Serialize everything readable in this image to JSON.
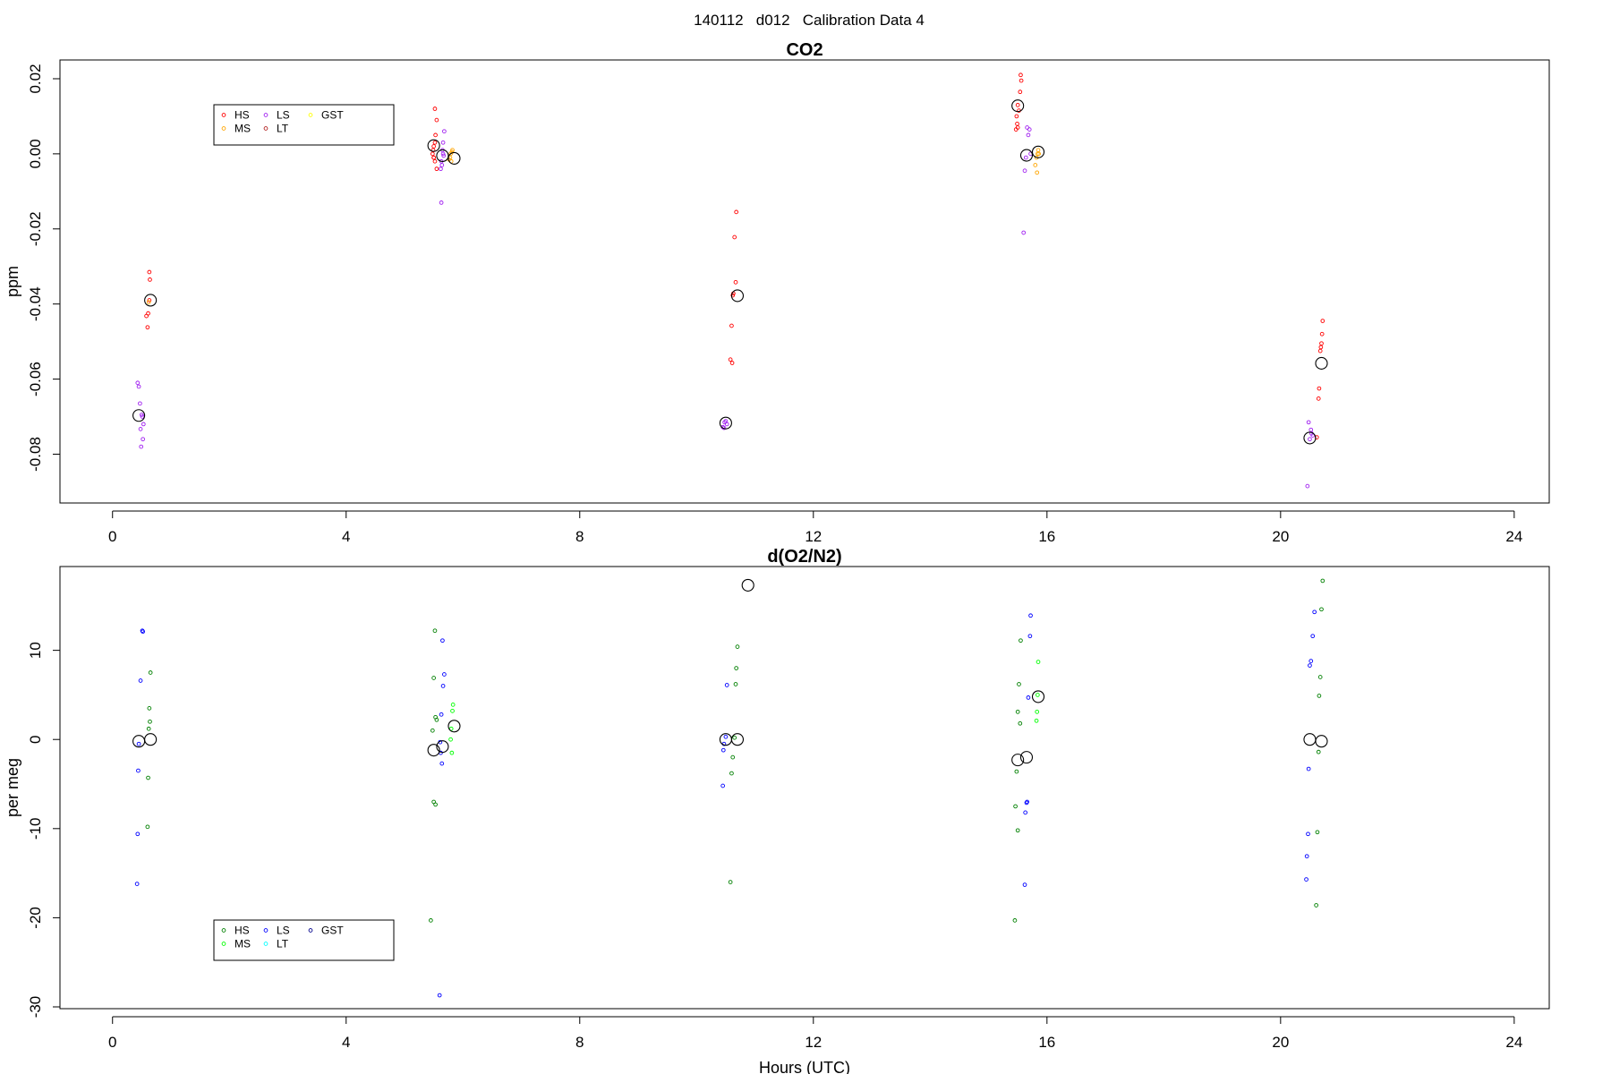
{
  "suptitle": "140112   d012   Calibration Data 4",
  "chart_data": [
    {
      "type": "scatter",
      "title": "CO2",
      "xlabel": "",
      "ylabel": "ppm",
      "xlim": [
        -0.9,
        24.6
      ],
      "ylim": [
        -0.093,
        0.025
      ],
      "xticks": [
        0,
        4,
        8,
        12,
        16,
        20,
        24
      ],
      "yticks": [
        -0.08,
        -0.06,
        -0.04,
        -0.02,
        0.0,
        0.02
      ],
      "ytick_labels": [
        "-0.08",
        "-0.06",
        "-0.04",
        "-0.02",
        "0.00",
        "0.02"
      ],
      "grid": false,
      "legend": {
        "entries": [
          {
            "name": "HS",
            "color": "#ff0000"
          },
          {
            "name": "MS",
            "color": "#ffa500"
          },
          {
            "name": "LS",
            "color": "#a020f0"
          },
          {
            "name": "LT",
            "color": "#b22222"
          },
          {
            "name": "GST",
            "color": "#ffff00"
          }
        ]
      },
      "series": [
        {
          "name": "HS",
          "color": "#ff0000",
          "x": [
            0.63,
            0.64,
            0.63,
            0.61,
            0.58,
            0.6,
            5.52,
            5.55,
            5.53,
            5.5,
            5.48,
            5.5,
            5.52,
            5.55,
            5.5,
            5.49,
            5.52,
            10.68,
            10.65,
            10.67,
            10.63,
            10.62,
            10.6,
            10.58,
            10.61,
            15.55,
            15.56,
            15.54,
            15.5,
            15.48,
            15.49,
            15.5,
            15.47,
            15.52,
            20.72,
            20.71,
            20.7,
            20.69,
            20.68,
            20.66,
            20.65,
            20.62
          ],
          "y": [
            -0.0315,
            -0.0335,
            -0.039,
            -0.0425,
            -0.0432,
            -0.0462,
            0.012,
            0.009,
            0.005,
            0.002,
            0.0,
            -0.001,
            -0.002,
            -0.004,
            -0.001,
            0.001,
            0.003,
            -0.0155,
            -0.0222,
            -0.0342,
            -0.0372,
            -0.0377,
            -0.0458,
            -0.0548,
            -0.0557,
            0.021,
            0.0195,
            0.0165,
            0.013,
            0.01,
            0.008,
            0.007,
            0.0065,
            0.0115,
            -0.0445,
            -0.048,
            -0.0505,
            -0.0515,
            -0.0525,
            -0.0625,
            -0.0652,
            -0.0755
          ]
        },
        {
          "name": "MS",
          "color": "#ffa500",
          "x": [
            0.62,
            5.82,
            5.79,
            5.78,
            5.8,
            5.76,
            5.81,
            15.85,
            15.84,
            15.82,
            15.8,
            15.83,
            15.86
          ],
          "y": [
            -0.0395,
            0.001,
            0.0,
            -0.001,
            -0.002,
            -0.0015,
            0.0005,
            0.001,
            0.0,
            -0.001,
            -0.003,
            -0.005,
            0.0
          ]
        },
        {
          "name": "LS",
          "color": "#a020f0",
          "x": [
            0.43,
            0.45,
            0.47,
            0.5,
            0.48,
            0.53,
            0.52,
            0.49,
            0.51,
            5.68,
            5.66,
            5.65,
            5.63,
            5.62,
            5.64,
            5.67,
            5.66,
            5.63,
            10.48,
            10.5,
            10.52,
            10.45,
            10.47,
            15.66,
            15.68,
            15.7,
            15.72,
            15.64,
            15.62,
            15.6,
            20.48,
            20.52,
            20.55,
            20.5,
            20.46,
            20.53
          ],
          "y": [
            -0.061,
            -0.062,
            -0.0665,
            -0.0695,
            -0.0733,
            -0.072,
            -0.076,
            -0.078,
            -0.07,
            0.006,
            0.003,
            0.001,
            -0.002,
            -0.004,
            -0.003,
            -0.0005,
            0.0,
            -0.013,
            -0.0715,
            -0.0712,
            -0.072,
            -0.0728,
            -0.073,
            0.007,
            0.005,
            0.0065,
            0.0,
            -0.001,
            -0.0045,
            -0.021,
            -0.0715,
            -0.0735,
            -0.075,
            -0.076,
            -0.0885,
            -0.0745
          ]
        },
        {
          "name": "LT",
          "color": "#b22222",
          "x": [],
          "y": []
        },
        {
          "name": "GST",
          "color": "#ffff00",
          "x": [],
          "y": []
        },
        {
          "name": "mean",
          "color": "#000000",
          "x": [
            0.45,
            0.65,
            5.5,
            5.65,
            5.85,
            10.5,
            10.7,
            15.5,
            15.65,
            15.85,
            20.5,
            20.7
          ],
          "y": [
            -0.0697,
            -0.039,
            0.0022,
            -0.0005,
            -0.0012,
            -0.0717,
            -0.0378,
            0.0128,
            -0.0004,
            0.0005,
            -0.0757,
            -0.0558
          ]
        }
      ]
    },
    {
      "type": "scatter",
      "title": "d(O2/N2)",
      "xlabel": "Hours (UTC)",
      "ylabel": "per meg",
      "xlim": [
        -0.9,
        24.6
      ],
      "ylim": [
        -30.2,
        19.4
      ],
      "xticks": [
        0,
        4,
        8,
        12,
        16,
        20,
        24
      ],
      "yticks": [
        -30,
        -20,
        -10,
        0,
        10
      ],
      "ytick_labels": [
        "-30",
        "-20",
        "-10",
        "0",
        "10"
      ],
      "grid": false,
      "legend": {
        "entries": [
          {
            "name": "HS",
            "color": "#008000"
          },
          {
            "name": "MS",
            "color": "#00ff00"
          },
          {
            "name": "LS",
            "color": "#0000ff"
          },
          {
            "name": "LT",
            "color": "#00ffff"
          },
          {
            "name": "GST",
            "color": "#00008b"
          }
        ]
      },
      "series": [
        {
          "name": "HS",
          "color": "#008000",
          "x": [
            0.65,
            0.63,
            0.64,
            0.62,
            0.61,
            0.6,
            5.52,
            5.5,
            5.53,
            5.55,
            5.48,
            5.5,
            5.53,
            5.45,
            10.7,
            10.68,
            10.67,
            10.65,
            10.62,
            10.6,
            10.58,
            15.55,
            15.52,
            15.5,
            15.54,
            15.48,
            15.46,
            15.5,
            15.45,
            20.72,
            20.7,
            20.68,
            20.66,
            20.65,
            20.63,
            20.61
          ],
          "y": [
            7.5,
            3.5,
            2.0,
            1.2,
            -4.3,
            -9.8,
            12.2,
            6.9,
            2.5,
            2.2,
            1.0,
            -7.0,
            -7.3,
            -20.3,
            10.4,
            8.0,
            6.2,
            0.2,
            -2.0,
            -3.8,
            -16.0,
            11.1,
            6.2,
            3.1,
            1.8,
            -3.6,
            -7.5,
            -10.2,
            -20.3,
            17.8,
            14.6,
            7.0,
            4.9,
            -1.4,
            -10.4,
            -18.6
          ]
        },
        {
          "name": "MS",
          "color": "#00ff00",
          "x": [
            5.83,
            5.82,
            5.8,
            5.79,
            5.81,
            15.85,
            15.84,
            15.83,
            15.82
          ],
          "y": [
            3.9,
            3.2,
            1.2,
            0.0,
            -1.5,
            8.7,
            5.0,
            3.1,
            2.1
          ]
        },
        {
          "name": "LS",
          "color": "#0000ff",
          "x": [
            0.52,
            0.51,
            0.48,
            0.45,
            0.44,
            0.43,
            0.42,
            5.65,
            5.68,
            5.66,
            5.63,
            5.62,
            5.64,
            5.61,
            5.6,
            10.52,
            10.5,
            10.47,
            10.46,
            10.45,
            15.72,
            15.71,
            15.68,
            15.66,
            15.65,
            15.63,
            15.62,
            20.58,
            20.55,
            20.52,
            20.5,
            20.48,
            20.47,
            20.45,
            20.44
          ],
          "y": [
            12.1,
            12.2,
            6.6,
            -0.5,
            -3.5,
            -10.6,
            -16.2,
            11.1,
            7.3,
            6.0,
            2.8,
            -1.5,
            -2.7,
            -0.3,
            -28.7,
            6.1,
            0.3,
            -0.5,
            -1.2,
            -5.2,
            13.9,
            11.6,
            4.7,
            -7.0,
            -7.1,
            -8.2,
            -16.3,
            14.3,
            11.6,
            8.8,
            8.3,
            -3.3,
            -10.6,
            -13.1,
            -15.7
          ]
        },
        {
          "name": "LT",
          "color": "#00ffff",
          "x": [],
          "y": []
        },
        {
          "name": "GST",
          "color": "#00008b",
          "x": [],
          "y": []
        },
        {
          "name": "mean",
          "color": "#000000",
          "x": [
            0.45,
            0.65,
            5.5,
            5.65,
            5.85,
            10.5,
            10.7,
            10.88,
            15.5,
            15.65,
            15.85,
            20.5,
            20.7
          ],
          "y": [
            -0.2,
            0.0,
            -1.2,
            -0.8,
            1.5,
            0.0,
            0.0,
            17.3,
            -2.3,
            -2.0,
            4.8,
            0.0,
            -0.2
          ]
        }
      ]
    }
  ]
}
